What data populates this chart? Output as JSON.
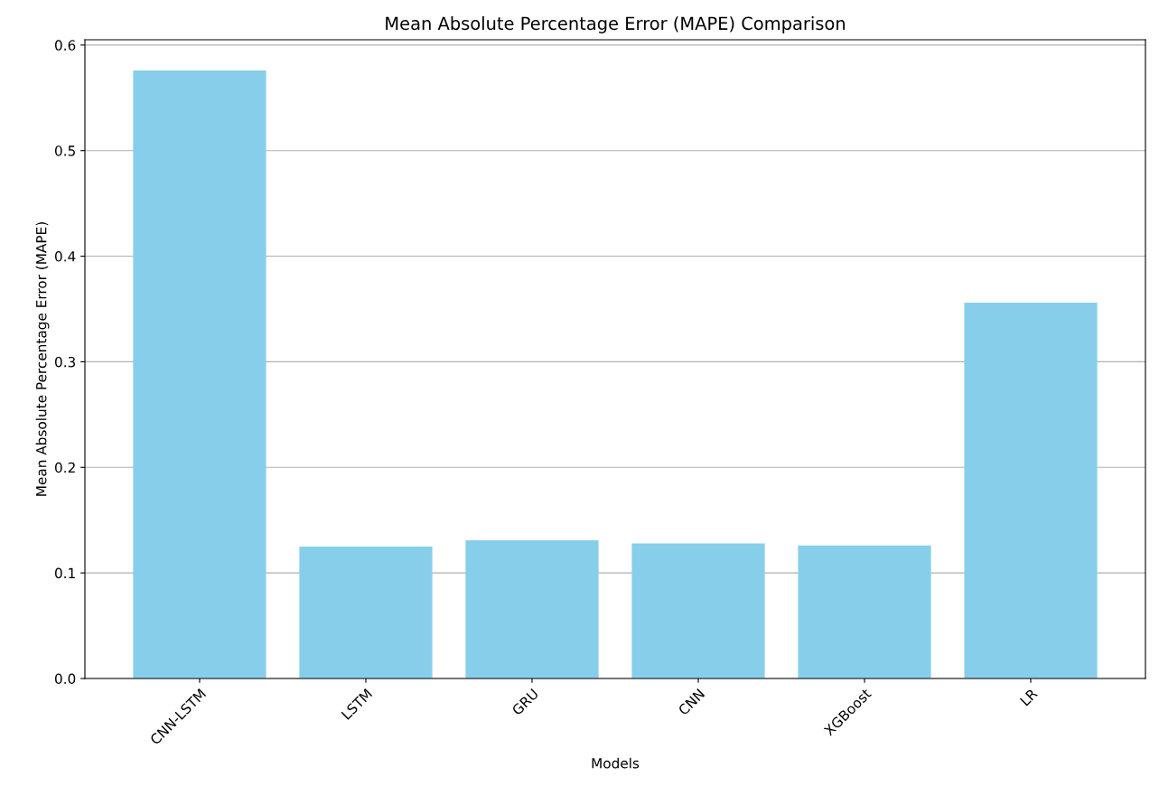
{
  "chart_data": {
    "type": "bar",
    "title": "Mean Absolute Percentage Error (MAPE) Comparison",
    "xlabel": "Models",
    "ylabel": "Mean Absolute Percentage Error (MAPE)",
    "categories": [
      "CNN-LSTM",
      "LSTM",
      "GRU",
      "CNN",
      "XGBoost",
      "LR"
    ],
    "values": [
      0.576,
      0.125,
      0.131,
      0.128,
      0.126,
      0.356
    ],
    "color": "#87ceeb",
    "ylim": [
      0,
      0.605
    ],
    "yticks": [
      {
        "value": 0,
        "label": "0.0"
      },
      0.1,
      0.2,
      0.3,
      0.4,
      0.5,
      0.6
    ],
    "grid": "y"
  }
}
